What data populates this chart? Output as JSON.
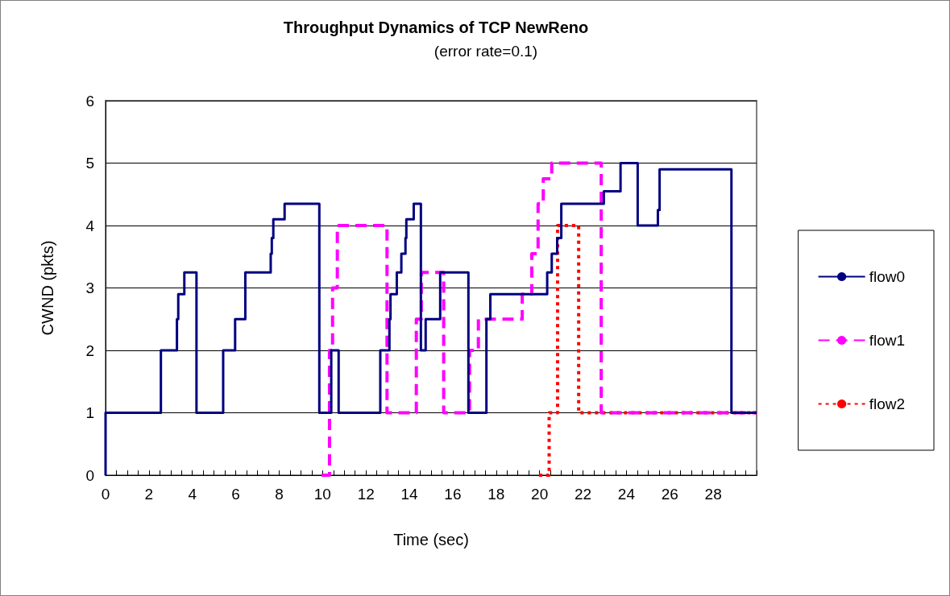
{
  "chart_data": {
    "type": "step",
    "title": "Throughput Dynamics of TCP NewReno",
    "subtitle": "(error rate=0.1)",
    "xlabel": "Time (sec)",
    "ylabel": "CWND (pkts)",
    "xlim": [
      0,
      30
    ],
    "ylim": [
      0,
      6
    ],
    "xticks": [
      0,
      {
        "value": 0.5,
        "label": null
      },
      {
        "value": 1,
        "label": null
      },
      {
        "value": 1.5,
        "label": null
      },
      2,
      {
        "value": 2.5,
        "label": null
      },
      {
        "value": 3,
        "label": null
      },
      {
        "value": 3.5,
        "label": null
      },
      4,
      {
        "value": 4.5,
        "label": null
      },
      {
        "value": 5,
        "label": null
      },
      {
        "value": 5.5,
        "label": null
      },
      6,
      {
        "value": 6.5,
        "label": null
      },
      {
        "value": 7,
        "label": null
      },
      {
        "value": 7.5,
        "label": null
      },
      8,
      {
        "value": 8.5,
        "label": null
      },
      {
        "value": 9,
        "label": null
      },
      {
        "value": 9.5,
        "label": null
      },
      10,
      {
        "value": 10.5,
        "label": null
      },
      {
        "value": 11,
        "label": null
      },
      {
        "value": 11.5,
        "label": null
      },
      12,
      {
        "value": 12.5,
        "label": null
      },
      {
        "value": 13,
        "label": null
      },
      {
        "value": 13.5,
        "label": null
      },
      14,
      {
        "value": 14.5,
        "label": null
      },
      {
        "value": 15,
        "label": null
      },
      {
        "value": 15.5,
        "label": null
      },
      16,
      {
        "value": 16.5,
        "label": null
      },
      {
        "value": 17,
        "label": null
      },
      {
        "value": 17.5,
        "label": null
      },
      18,
      {
        "value": 18.5,
        "label": null
      },
      {
        "value": 19,
        "label": null
      },
      {
        "value": 19.5,
        "label": null
      },
      20,
      {
        "value": 20.5,
        "label": null
      },
      {
        "value": 21,
        "label": null
      },
      {
        "value": 21.5,
        "label": null
      },
      22,
      {
        "value": 22.5,
        "label": null
      },
      {
        "value": 23,
        "label": null
      },
      {
        "value": 23.5,
        "label": null
      },
      24,
      {
        "value": 24.5,
        "label": null
      },
      {
        "value": 25,
        "label": null
      },
      {
        "value": 25.5,
        "label": null
      },
      26,
      {
        "value": 26.5,
        "label": null
      },
      {
        "value": 27,
        "label": null
      },
      {
        "value": 27.5,
        "label": null
      },
      28,
      {
        "value": 28.5,
        "label": null
      },
      {
        "value": 29,
        "label": null
      },
      {
        "value": 29.5,
        "label": null
      },
      {
        "value": 30,
        "label": null
      }
    ],
    "yticks": [
      0,
      1,
      2,
      3,
      4,
      5,
      6
    ],
    "grid": "y",
    "legend": "right",
    "marker": "none",
    "series": [
      {
        "name": "flow0",
        "color": "#000080",
        "line_style": "solid",
        "x": [
          0,
          0,
          2.55,
          3.29,
          3.35,
          3.63,
          4.19,
          5.42,
          5.97,
          6.44,
          7.61,
          7.66,
          7.73,
          8.25,
          9.85,
          10.4,
          10.74,
          12.66,
          13.08,
          13.13,
          13.42,
          13.63,
          13.82,
          13.86,
          14.2,
          14.53,
          14.75,
          15.42,
          16.72,
          17.55,
          17.73,
          20.35,
          20.56,
          20.81,
          21.0,
          22.96,
          23.73,
          24.52,
          25.45,
          25.53,
          28.84,
          30
        ],
        "values": [
          0,
          1,
          2,
          2.5,
          2.9,
          3.25,
          1,
          2,
          2.5,
          3.25,
          3.55,
          3.8,
          4.1,
          4.35,
          1,
          2,
          1,
          2,
          2.5,
          2.9,
          3.25,
          3.55,
          3.8,
          4.1,
          4.35,
          2,
          2.5,
          3.25,
          1,
          2.5,
          2.9,
          3.25,
          3.55,
          3.8,
          4.35,
          4.55,
          5,
          4,
          4.25,
          4.9,
          1,
          1
        ]
      },
      {
        "name": "flow1",
        "color": "#ff00ff",
        "line_style": "dashed",
        "x": [
          9.95,
          10.32,
          10.46,
          10.68,
          12.97,
          14.32,
          14.55,
          15.58,
          16.77,
          17.18,
          19.2,
          19.64,
          19.93,
          20.17,
          20.56,
          22.84,
          30
        ],
        "values": [
          0,
          2,
          3,
          4,
          1,
          2.5,
          3.25,
          1,
          2,
          2.5,
          2.9,
          3.55,
          4.35,
          4.75,
          5,
          1,
          1
        ]
      },
      {
        "name": "flow2",
        "color": "#ff0000",
        "line_style": "dotted",
        "x": [
          19.97,
          20.44,
          20.83,
          21.8,
          30
        ],
        "values": [
          0,
          1,
          4,
          1,
          1
        ]
      }
    ]
  }
}
